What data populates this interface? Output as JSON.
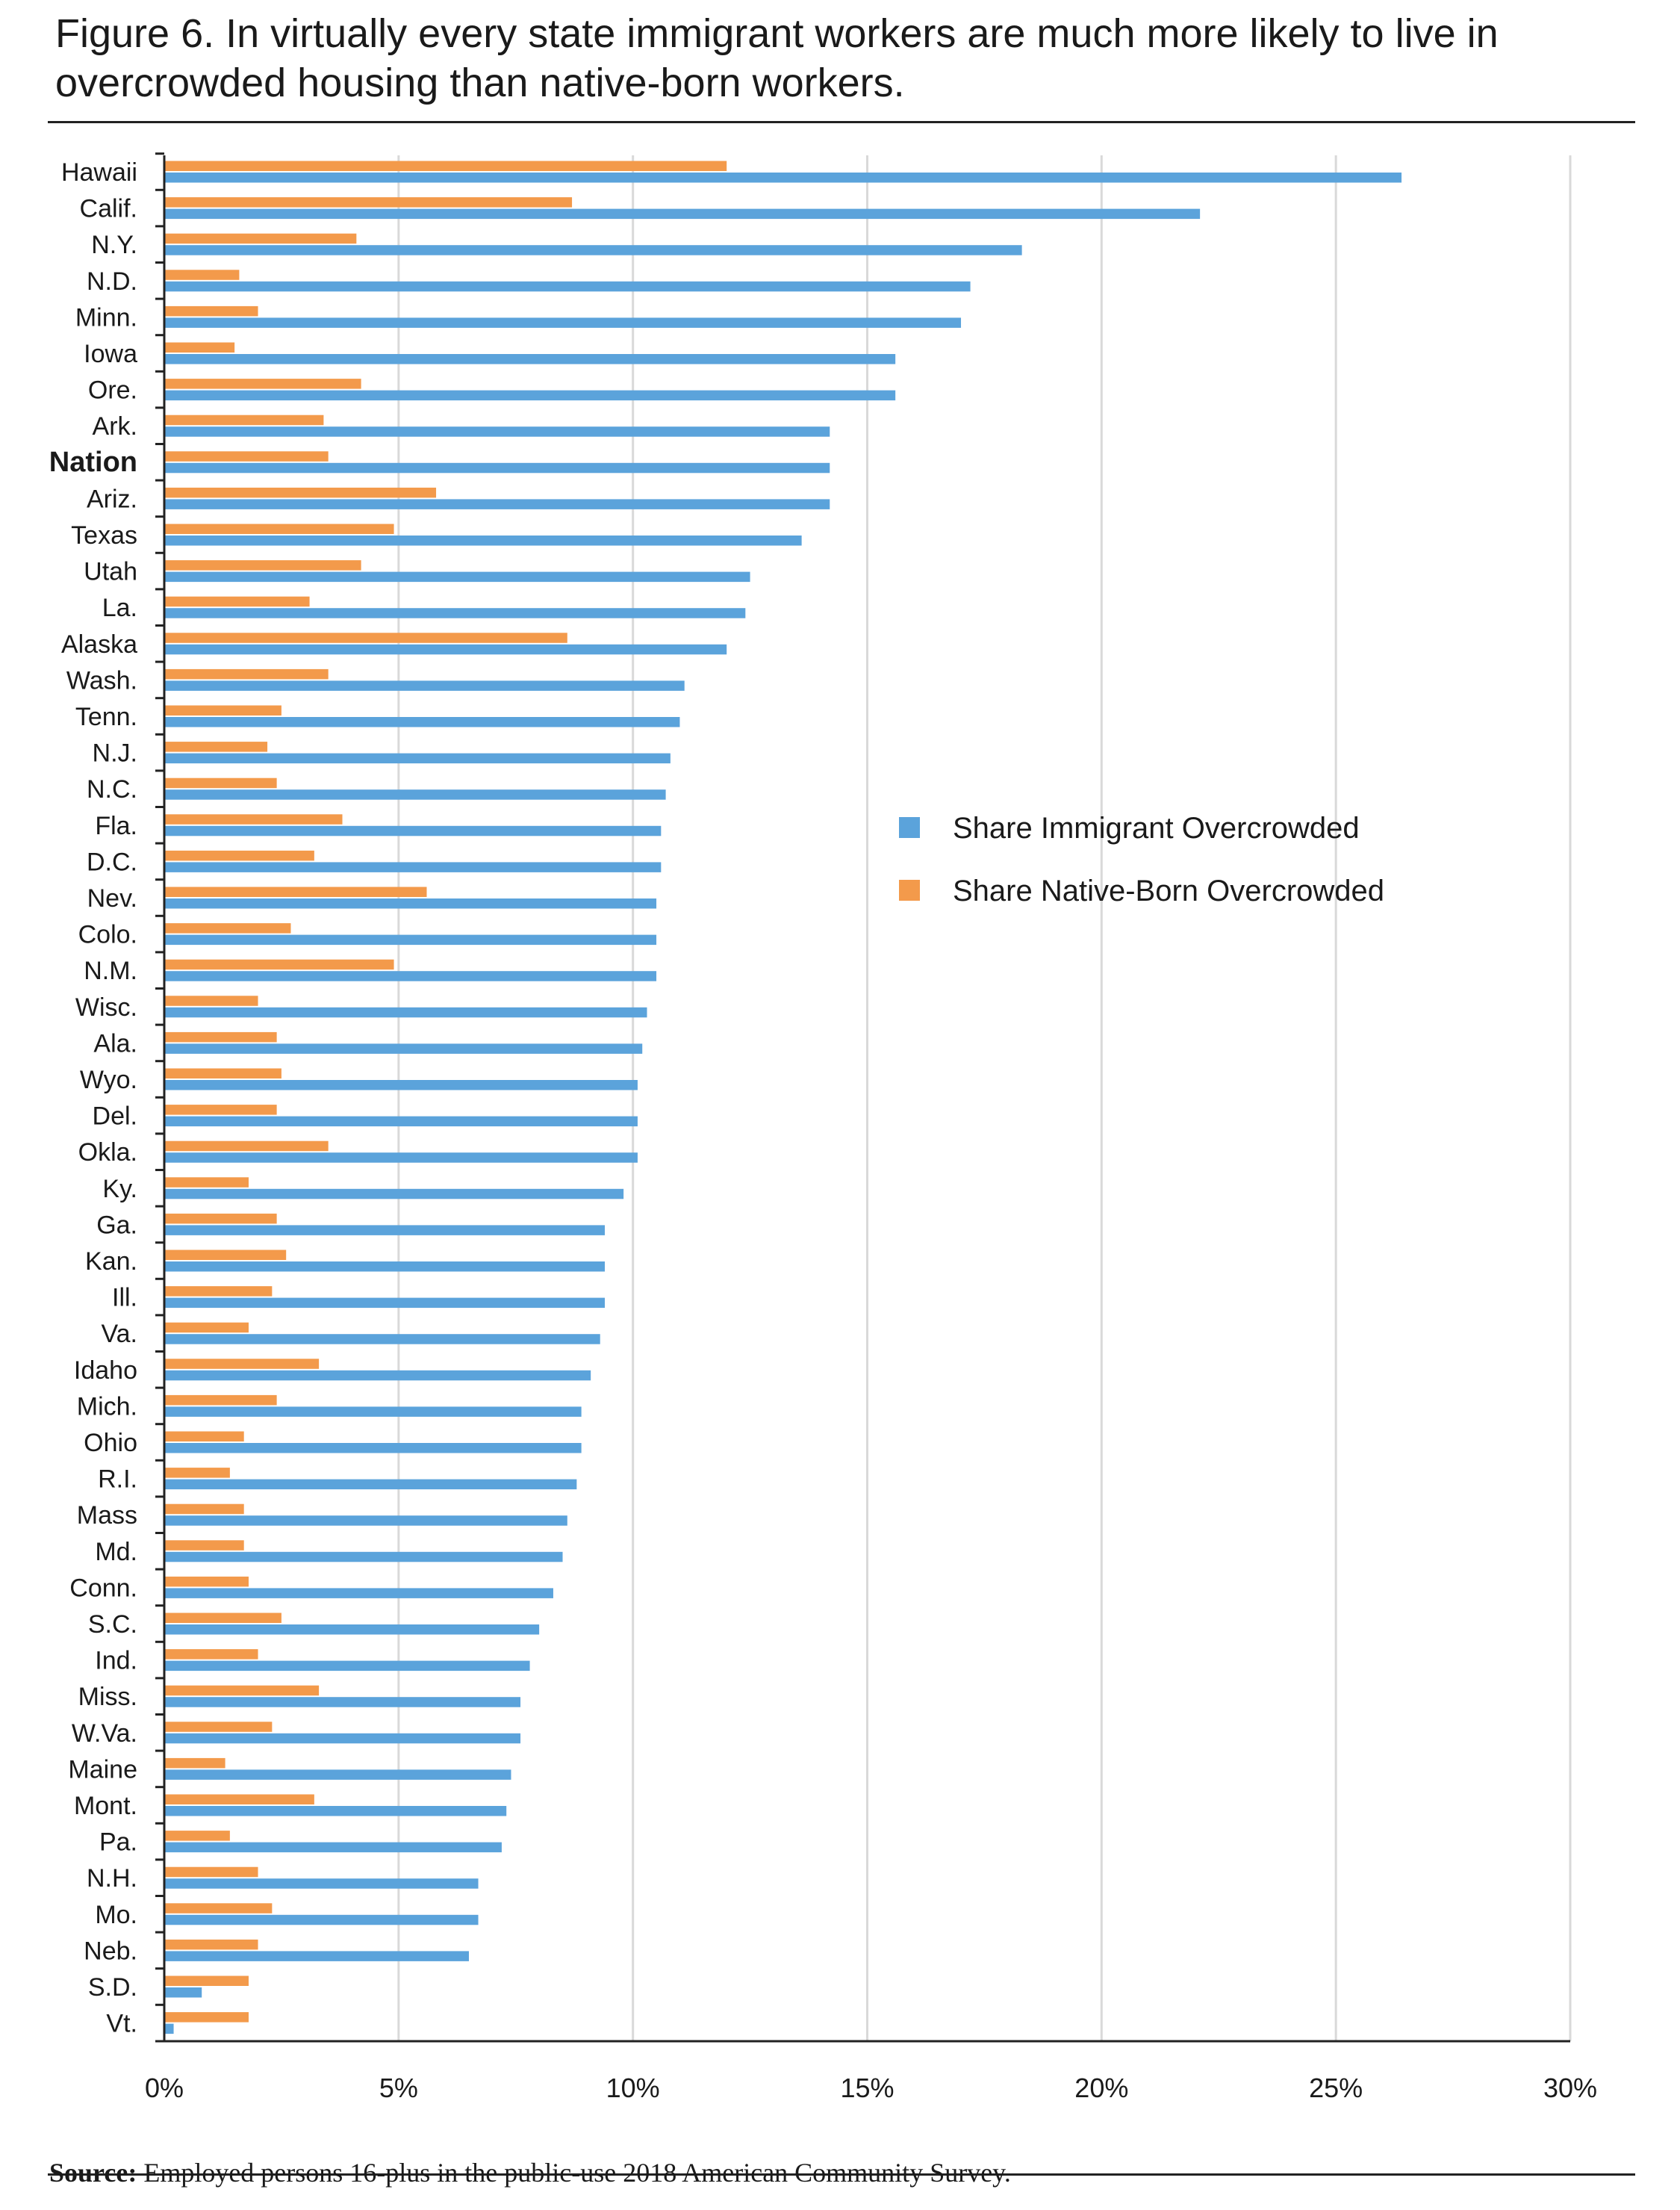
{
  "title": "Figure 6. In virtually every state immigrant workers are much more likely to live in overcrowded housing than native-born workers.",
  "source_label": "Source:",
  "source_text": " Employed persons 16-plus in the public-use 2018 American Community Survey.",
  "chart_data": {
    "type": "bar",
    "orientation": "horizontal",
    "categories": [
      "Hawaii",
      "Calif.",
      "N.Y.",
      "N.D.",
      "Minn.",
      "Iowa",
      "Ore.",
      "Ark.",
      "Nation",
      "Ariz.",
      "Texas",
      "Utah",
      "La.",
      "Alaska",
      "Wash.",
      "Tenn.",
      "N.J.",
      "N.C.",
      "Fla.",
      "D.C.",
      "Nev.",
      "Colo.",
      "N.M.",
      "Wisc.",
      "Ala.",
      "Wyo.",
      "Del.",
      "Okla.",
      "Ky.",
      "Ga.",
      "Kan.",
      "Ill.",
      "Va.",
      "Idaho",
      "Mich.",
      "Ohio",
      "R.I.",
      "Mass",
      "Md.",
      "Conn.",
      "S.C.",
      "Ind.",
      "Miss.",
      "W.Va.",
      "Maine",
      "Mont.",
      "Pa.",
      "N.H.",
      "Mo.",
      "Neb.",
      "S.D.",
      "Vt."
    ],
    "highlight_category": "Nation",
    "series": [
      {
        "name": "Share Immigrant Overcrowded",
        "color": "#5BA3DB",
        "values": [
          26.4,
          22.1,
          18.3,
          17.2,
          17.0,
          15.6,
          15.6,
          14.2,
          14.2,
          14.2,
          13.6,
          12.5,
          12.4,
          12.0,
          11.1,
          11.0,
          10.8,
          10.7,
          10.6,
          10.6,
          10.5,
          10.5,
          10.5,
          10.3,
          10.2,
          10.1,
          10.1,
          10.1,
          9.8,
          9.4,
          9.4,
          9.4,
          9.3,
          9.1,
          8.9,
          8.9,
          8.8,
          8.6,
          8.5,
          8.3,
          8.0,
          7.8,
          7.6,
          7.6,
          7.4,
          7.3,
          7.2,
          6.7,
          6.7,
          6.5,
          0.8,
          0.2
        ]
      },
      {
        "name": "Share Native-Born Overcrowded",
        "color": "#F39A4B",
        "values": [
          12.0,
          8.7,
          4.1,
          1.6,
          2.0,
          1.5,
          4.2,
          3.4,
          3.5,
          5.8,
          4.9,
          4.2,
          3.1,
          8.6,
          3.5,
          2.5,
          2.2,
          2.4,
          3.8,
          3.2,
          5.6,
          2.7,
          4.9,
          2.0,
          2.4,
          2.5,
          2.4,
          3.5,
          1.8,
          2.4,
          2.6,
          2.3,
          1.8,
          3.3,
          2.4,
          1.7,
          1.4,
          1.7,
          1.7,
          1.8,
          2.5,
          2.0,
          3.3,
          2.3,
          1.3,
          3.2,
          1.4,
          2.0,
          2.3,
          2.0,
          1.8,
          1.8
        ]
      }
    ],
    "x_ticks": [
      "0%",
      "5%",
      "10%",
      "15%",
      "20%",
      "25%",
      "30%"
    ],
    "xlim": [
      0,
      30
    ],
    "grid": true,
    "legend_position": "right-middle"
  }
}
